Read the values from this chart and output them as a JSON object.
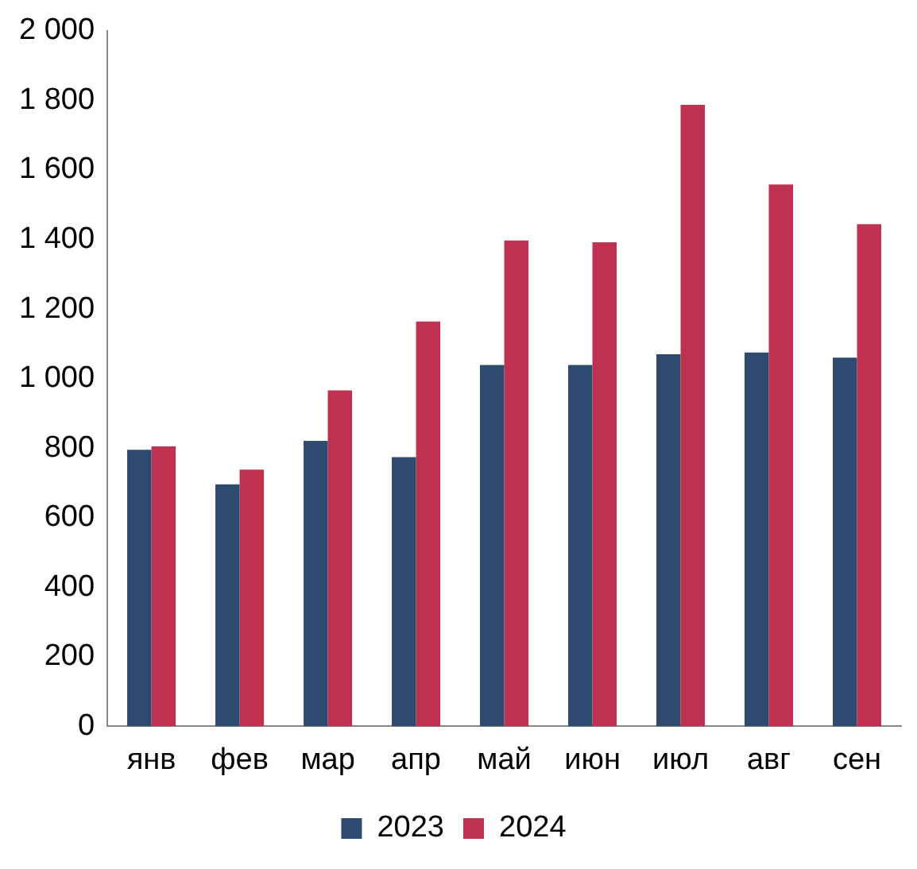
{
  "chart_data": {
    "type": "bar",
    "categories": [
      "янв",
      "фев",
      "мар",
      "апр",
      "май",
      "июн",
      "июл",
      "авг",
      "сен"
    ],
    "series": [
      {
        "name": "2023",
        "color": "#2e4a6e",
        "values": [
          795,
          696,
          821,
          774,
          1039,
          1039,
          1070,
          1075,
          1060
        ]
      },
      {
        "name": "2024",
        "color": "#c0314f",
        "values": [
          805,
          738,
          966,
          1164,
          1397,
          1392,
          1787,
          1558,
          1444
        ]
      }
    ],
    "ylim": [
      0,
      2000
    ],
    "yticks": [
      0,
      {
        "value": 200,
        "label": "200"
      },
      {
        "value": 400,
        "label": "400"
      },
      {
        "value": 600,
        "label": "600"
      },
      {
        "value": 800,
        "label": "800"
      },
      {
        "value": 1000,
        "label": "1 000"
      },
      {
        "value": 1200,
        "label": "1 200"
      },
      {
        "value": 1400,
        "label": "1 400"
      },
      {
        "value": 1600,
        "label": "1 600"
      },
      {
        "value": 1800,
        "label": "1 800"
      },
      {
        "value": 2000,
        "label": "2 000"
      }
    ],
    "grid": false,
    "legend": "bottom"
  }
}
